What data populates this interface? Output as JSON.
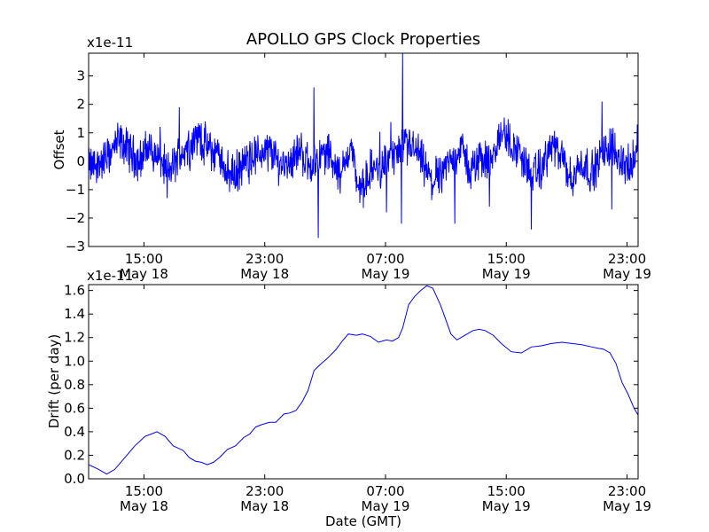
{
  "title": "APOLLO GPS Clock Properties",
  "chart_data": [
    {
      "type": "line",
      "ylabel": "Offset",
      "scale_label": "x1e-11",
      "ylim": [
        -3,
        3.8
      ],
      "y_ticks": [
        -3,
        -2,
        -1,
        0,
        1,
        2,
        3
      ],
      "y_tick_labels": [
        "−3",
        "−2",
        "−1",
        "0",
        "1",
        "2",
        "3"
      ],
      "xlim_hours": [
        0,
        27.3
      ],
      "x_ticks_hours": [
        2.75,
        8.75,
        14.75,
        20.75,
        26.75
      ],
      "x_tick_labels": [
        [
          "15:00",
          "May 18"
        ],
        [
          "23:00",
          "May 18"
        ],
        [
          "07:00",
          "May 19"
        ],
        [
          "15:00",
          "May 19"
        ],
        [
          "23:00",
          "May 19"
        ]
      ],
      "color": "#0000ff",
      "series_trend": {
        "x": [
          0,
          0.5,
          1.0,
          1.5,
          2.0,
          2.5,
          3.0,
          3.5,
          4.0,
          4.5,
          5.0,
          5.5,
          6.0,
          6.5,
          7.0,
          7.5,
          8.0,
          8.5,
          9.0,
          9.5,
          10.0,
          10.5,
          11.0,
          11.5,
          12.0,
          12.5,
          13.0,
          13.5,
          14.0,
          14.5,
          15.0,
          15.5,
          16.0,
          16.5,
          17.0,
          17.5,
          18.0,
          18.5,
          19.0,
          19.5,
          20.0,
          20.5,
          21.0,
          21.5,
          22.0,
          22.5,
          23.0,
          23.5,
          24.0,
          24.5,
          25.0,
          25.5,
          26.0,
          26.5,
          27.0,
          27.3
        ],
        "y": [
          -0.2,
          -0.1,
          0.2,
          0.7,
          0.4,
          0.0,
          0.5,
          0.1,
          -0.4,
          0.2,
          0.6,
          0.9,
          0.4,
          0.2,
          -0.5,
          -0.3,
          0.1,
          0.3,
          0.4,
          -0.1,
          0.0,
          0.4,
          -0.2,
          0.2,
          0.3,
          -0.6,
          0.6,
          -1.2,
          -0.3,
          -0.2,
          0.2,
          0.3,
          0.6,
          0.1,
          -0.8,
          -0.4,
          0.0,
          0.5,
          -0.4,
          0.2,
          -0.2,
          1.1,
          0.6,
          0.2,
          -0.5,
          -0.3,
          0.6,
          0.1,
          -0.7,
          0.0,
          -0.4,
          0.2,
          0.6,
          0.0,
          -0.3,
          0.7
        ]
      },
      "spikes": [
        {
          "x": 11.2,
          "y": 2.6
        },
        {
          "x": 11.4,
          "y": -2.7
        },
        {
          "x": 15.6,
          "y": 3.8
        },
        {
          "x": 15.55,
          "y": -2.2
        },
        {
          "x": 14.8,
          "y": -1.8
        },
        {
          "x": 18.2,
          "y": -2.2
        },
        {
          "x": 22.0,
          "y": -2.4
        },
        {
          "x": 19.9,
          "y": -1.6
        },
        {
          "x": 25.5,
          "y": 2.1
        },
        {
          "x": 26.0,
          "y": -1.7
        },
        {
          "x": 4.5,
          "y": 1.9
        },
        {
          "x": 3.9,
          "y": -1.3
        }
      ]
    },
    {
      "type": "line",
      "ylabel": "Drift (per day)",
      "xlabel": "Date (GMT)",
      "scale_label": "x1e-11",
      "ylim": [
        0,
        1.65
      ],
      "y_ticks": [
        0.0,
        0.2,
        0.4,
        0.6,
        0.8,
        1.0,
        1.2,
        1.4,
        1.6
      ],
      "y_tick_labels": [
        "0.0",
        "0.2",
        "0.4",
        "0.6",
        "0.8",
        "1.0",
        "1.2",
        "1.4",
        "1.6"
      ],
      "xlim_hours": [
        0,
        27.3
      ],
      "x_ticks_hours": [
        2.75,
        8.75,
        14.75,
        20.75,
        26.75
      ],
      "x_tick_labels": [
        [
          "15:00",
          "May 18"
        ],
        [
          "23:00",
          "May 18"
        ],
        [
          "07:00",
          "May 19"
        ],
        [
          "15:00",
          "May 19"
        ],
        [
          "23:00",
          "May 19"
        ]
      ],
      "color": "#0000ff",
      "x": [
        0,
        0.5,
        0.9,
        1.3,
        1.8,
        2.3,
        2.8,
        3.1,
        3.4,
        3.8,
        4.2,
        4.7,
        5.0,
        5.3,
        5.6,
        5.9,
        6.2,
        6.5,
        6.9,
        7.3,
        7.7,
        8.0,
        8.3,
        8.6,
        9.0,
        9.3,
        9.7,
        10.0,
        10.3,
        10.6,
        10.9,
        11.2,
        11.5,
        11.9,
        12.3,
        12.6,
        12.9,
        13.3,
        13.6,
        14.0,
        14.4,
        14.8,
        15.1,
        15.4,
        15.6,
        15.9,
        16.2,
        16.5,
        16.8,
        17.1,
        17.5,
        18.0,
        18.3,
        18.7,
        19.1,
        19.4,
        19.7,
        20.1,
        20.5,
        21.0,
        21.5,
        22.0,
        22.5,
        23.0,
        23.5,
        24.0,
        24.5,
        25.0,
        25.3,
        25.6,
        25.9,
        26.2,
        26.5,
        26.8,
        27.1,
        27.3
      ],
      "y": [
        0.12,
        0.08,
        0.04,
        0.08,
        0.18,
        0.28,
        0.36,
        0.38,
        0.4,
        0.36,
        0.28,
        0.24,
        0.18,
        0.15,
        0.14,
        0.12,
        0.14,
        0.18,
        0.25,
        0.28,
        0.35,
        0.38,
        0.44,
        0.46,
        0.48,
        0.48,
        0.55,
        0.56,
        0.58,
        0.65,
        0.75,
        0.92,
        0.97,
        1.03,
        1.1,
        1.17,
        1.23,
        1.22,
        1.23,
        1.21,
        1.16,
        1.18,
        1.17,
        1.2,
        1.28,
        1.48,
        1.55,
        1.6,
        1.64,
        1.62,
        1.47,
        1.23,
        1.18,
        1.22,
        1.26,
        1.27,
        1.26,
        1.22,
        1.15,
        1.08,
        1.07,
        1.12,
        1.13,
        1.15,
        1.16,
        1.15,
        1.14,
        1.12,
        1.11,
        1.1,
        1.07,
        0.98,
        0.82,
        0.72,
        0.6,
        0.54
      ]
    }
  ]
}
